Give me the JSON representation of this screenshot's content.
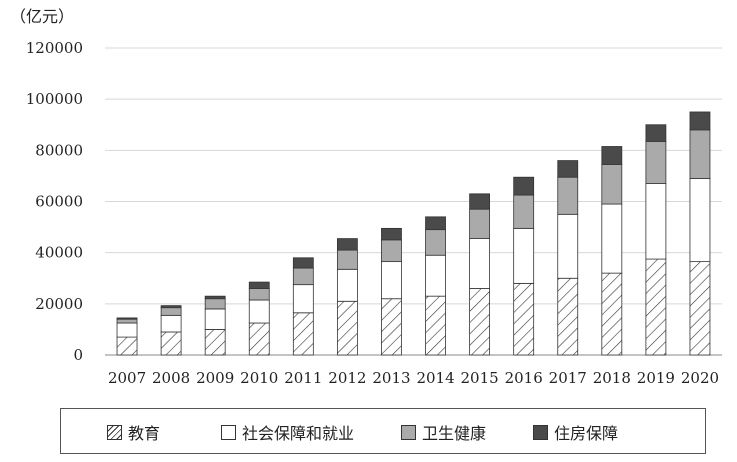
{
  "chart_data": {
    "type": "bar",
    "stacked": true,
    "unit_label": "（亿元）",
    "categories": [
      "2007",
      "2008",
      "2009",
      "2010",
      "2011",
      "2012",
      "2013",
      "2014",
      "2015",
      "2016",
      "2017",
      "2018",
      "2019",
      "2020"
    ],
    "ylim": [
      0,
      120000
    ],
    "yticks": [
      0,
      20000,
      40000,
      60000,
      80000,
      100000,
      120000
    ],
    "grid": true,
    "legend_position": "bottom",
    "series": [
      {
        "name": "教育",
        "pattern": "hatch",
        "color": "#ffffff",
        "values": [
          7000,
          9000,
          10000,
          12500,
          16500,
          21000,
          22000,
          23000,
          26000,
          28000,
          30000,
          32000,
          37500,
          36500
        ]
      },
      {
        "name": "社会保障和就业",
        "pattern": "solid",
        "color": "#ffffff",
        "values": [
          5500,
          6500,
          8000,
          9000,
          11000,
          12500,
          14500,
          16000,
          19500,
          21500,
          25000,
          27000,
          29500,
          32500
        ]
      },
      {
        "name": "卫生健康",
        "pattern": "solid",
        "color": "#aaaaaa",
        "values": [
          1500,
          3000,
          4000,
          4500,
          6500,
          7500,
          8500,
          10000,
          11500,
          13000,
          14500,
          15500,
          16500,
          19000
        ]
      },
      {
        "name": "住房保障",
        "pattern": "solid",
        "color": "#4a4a4a",
        "values": [
          500,
          800,
          1000,
          2500,
          4000,
          4500,
          4500,
          5000,
          6000,
          7000,
          6500,
          7000,
          6500,
          7000
        ]
      }
    ]
  }
}
